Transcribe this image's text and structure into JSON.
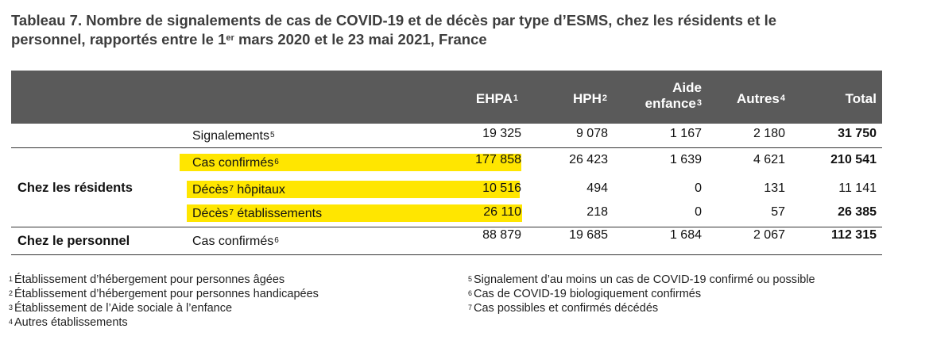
{
  "title": {
    "line1": "Tableau 7. Nombre de signalements de cas de COVID-19 et de décès par type d’ESMS, chez les résidents et le",
    "line2_pre": "personnel, rapportés entre le 1",
    "line2_sup": "er",
    "line2_post": " mars 2020 et le 23 mai 2021, France"
  },
  "columns": {
    "ehpa": {
      "label": "EHPA",
      "sup": "1"
    },
    "hph": {
      "label": "HPH",
      "sup": "2"
    },
    "aide_line1": "Aide",
    "aide_line2": "enfance",
    "aide_sup": "3",
    "autres": {
      "label": "Autres",
      "sup": "4"
    },
    "total": "Total"
  },
  "groups": {
    "residents": "Chez les résidents",
    "personnel": "Chez le personnel"
  },
  "rows": [
    {
      "label": "Signalements",
      "sup": "5",
      "ehpa": "19 325",
      "hph": "9 078",
      "aide": "1 167",
      "autres": "2 180",
      "total": "31 750",
      "total_bold": true,
      "highlight": false
    },
    {
      "label": "Cas confirmés",
      "sup": "6",
      "ehpa": "177 858",
      "hph": "26 423",
      "aide": "1 639",
      "autres": "4 621",
      "total": "210 541",
      "total_bold": true,
      "highlight": true
    },
    {
      "label": "Décès",
      "sup": "7",
      "label_post": " hôpitaux",
      "ehpa": "10 516",
      "hph": "494",
      "aide": "0",
      "autres": "131",
      "total": "11 141",
      "total_bold": false,
      "highlight": true
    },
    {
      "label": "Décès",
      "sup": "7",
      "label_post": " établissements",
      "ehpa": "26 110",
      "hph": "218",
      "aide": "0",
      "autres": "57",
      "total": "26 385",
      "total_bold": true,
      "highlight": true
    },
    {
      "label": "Cas confirmés",
      "sup": "6",
      "ehpa": "88 879",
      "hph": "19 685",
      "aide": "1 684",
      "autres": "2 067",
      "total": "112 315",
      "total_bold": true,
      "highlight": false
    }
  ],
  "footnotes": {
    "n1": {
      "sup": "1",
      "text": "Établissement d’hébergement pour personnes âgées"
    },
    "n2": {
      "sup": "2",
      "text": "Établissement d’hébergement pour personnes handicapées"
    },
    "n3": {
      "sup": "3",
      "text": "Établissement de l’Aide sociale à l’enfance"
    },
    "n4": {
      "sup": "4",
      "text": "Autres établissements"
    },
    "n5": {
      "sup": "5",
      "text": "Signalement d’au moins un cas de COVID-19 confirmé ou possible"
    },
    "n6": {
      "sup": "6",
      "text": "Cas de COVID-19 biologiquement confirmés"
    },
    "n7": {
      "sup": "7",
      "text": "Cas possibles et confirmés décédés"
    }
  },
  "colors": {
    "header_bg": "#5a5a5a",
    "highlight": "#ffe600"
  }
}
